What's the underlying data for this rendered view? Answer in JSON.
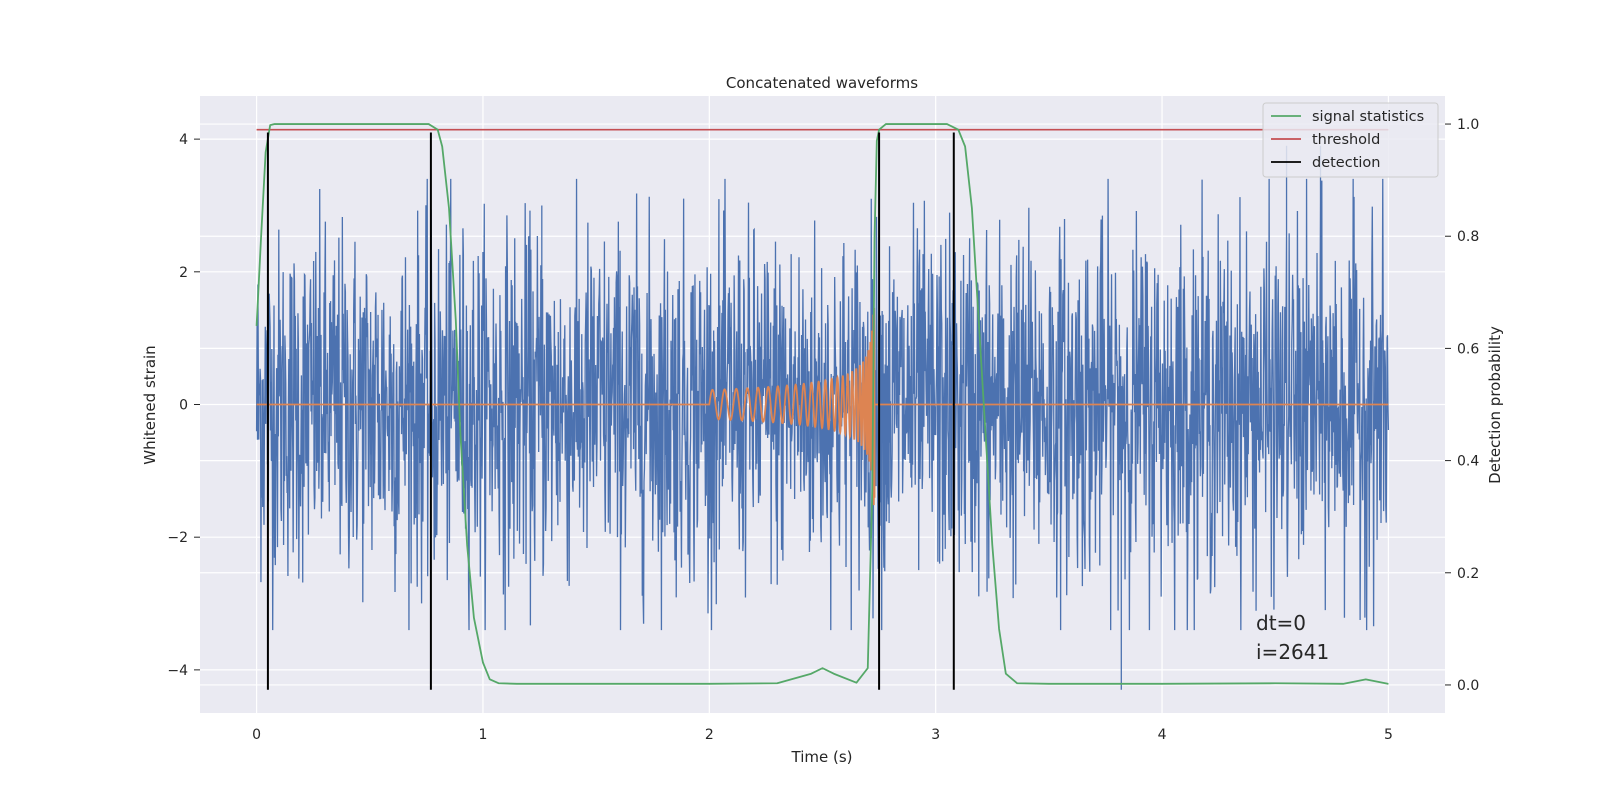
{
  "chart_data": {
    "type": "line",
    "title": "Concatenated waveforms",
    "xlabel": "Time (s)",
    "ylabel": "Whitened strain",
    "y2label": "Detection probability",
    "xlim": [
      -0.25,
      5.25
    ],
    "ylim": [
      -4.65,
      4.65
    ],
    "y2lim": [
      -0.05,
      1.05
    ],
    "xticks": [
      0,
      1,
      2,
      3,
      4,
      5
    ],
    "yticks": [
      -4,
      -2,
      0,
      2,
      4
    ],
    "y2ticks": [
      0.0,
      0.2,
      0.4,
      0.6,
      0.8,
      1.0
    ],
    "grid": true,
    "legend_position": "top-right",
    "colors": {
      "background": "#eaeaf2",
      "grid": "#ffffff",
      "noise": "#4c72b0",
      "template": "#dd8452",
      "signal_statistics": "#55a868",
      "threshold": "#c44e52",
      "detection": "#000000"
    },
    "series": [
      {
        "name": "signal statistics",
        "axis": "right",
        "x": [
          0.0,
          0.02,
          0.04,
          0.06,
          0.08,
          0.12,
          0.2,
          0.6,
          0.76,
          0.8,
          0.82,
          0.85,
          0.88,
          0.9,
          0.93,
          0.96,
          1.0,
          1.03,
          1.07,
          1.15,
          1.5,
          2.0,
          2.3,
          2.45,
          2.5,
          2.55,
          2.65,
          2.7,
          2.72,
          2.73,
          2.74,
          2.75,
          2.78,
          2.85,
          3.05,
          3.1,
          3.13,
          3.16,
          3.19,
          3.22,
          3.25,
          3.28,
          3.31,
          3.36,
          3.5,
          4.0,
          4.5,
          4.8,
          4.9,
          4.95,
          5.0
        ],
        "values": [
          0.64,
          0.8,
          0.95,
          0.998,
          1.0,
          1.0,
          1.0,
          1.0,
          1.0,
          0.99,
          0.96,
          0.85,
          0.65,
          0.45,
          0.25,
          0.12,
          0.04,
          0.01,
          0.003,
          0.002,
          0.002,
          0.002,
          0.003,
          0.02,
          0.03,
          0.02,
          0.004,
          0.03,
          0.35,
          0.8,
          0.97,
          0.99,
          1.0,
          1.0,
          1.0,
          0.99,
          0.96,
          0.85,
          0.65,
          0.45,
          0.25,
          0.1,
          0.02,
          0.003,
          0.002,
          0.002,
          0.003,
          0.002,
          0.01,
          0.006,
          0.002
        ]
      },
      {
        "name": "threshold",
        "axis": "right",
        "x": [
          0.0,
          5.0
        ],
        "values": [
          0.99,
          0.99
        ]
      },
      {
        "name": "detection",
        "axis": "left",
        "vlines_x": [
          0.05,
          0.77,
          2.75,
          3.08
        ],
        "ymin": -4.3,
        "ymax": 4.1
      },
      {
        "name": "",
        "axis": "left",
        "kind": "noise",
        "x_range": [
          0,
          5
        ],
        "amplitude_typical": 1.3,
        "spikes": [
          {
            "x": 1.26,
            "y": 3.0
          },
          {
            "x": 3.82,
            "y": -4.3
          },
          {
            "x": 4.55,
            "y": 3.9
          },
          {
            "x": 4.7,
            "y": 3.9
          }
        ]
      },
      {
        "name": "",
        "axis": "left",
        "kind": "chirp",
        "x_range": [
          0,
          5
        ],
        "chirp_start": 2.0,
        "chirp_end": 2.73,
        "peak_amplitude": 1.6
      }
    ],
    "annotation": [
      "dt=0",
      "i=2641"
    ]
  }
}
